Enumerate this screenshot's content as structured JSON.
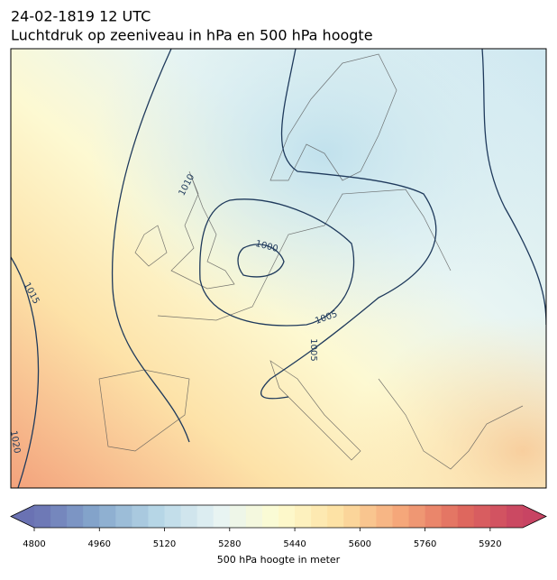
{
  "chart_data": {
    "type": "map",
    "title": "24-02-1819 12 UTC",
    "subtitle": "Luchtdruk op zeeniveau in hPa en 500 hPa hoogte",
    "isobars": [
      1020,
      1015,
      1010,
      1000,
      1005,
      1005
    ],
    "colorbar": {
      "label": "500 hPa hoogte in meter",
      "lim": [
        4800,
        6000
      ],
      "ticks": [
        4800,
        4960,
        5120,
        5280,
        5440,
        5600,
        5760,
        5920
      ],
      "colors": [
        "#6a72b3",
        "#85a7cc",
        "#b6d6e6",
        "#e6f3f4",
        "#fdfcd0",
        "#fde0a2",
        "#f5a77a",
        "#e06a5e",
        "#c84463"
      ]
    }
  }
}
